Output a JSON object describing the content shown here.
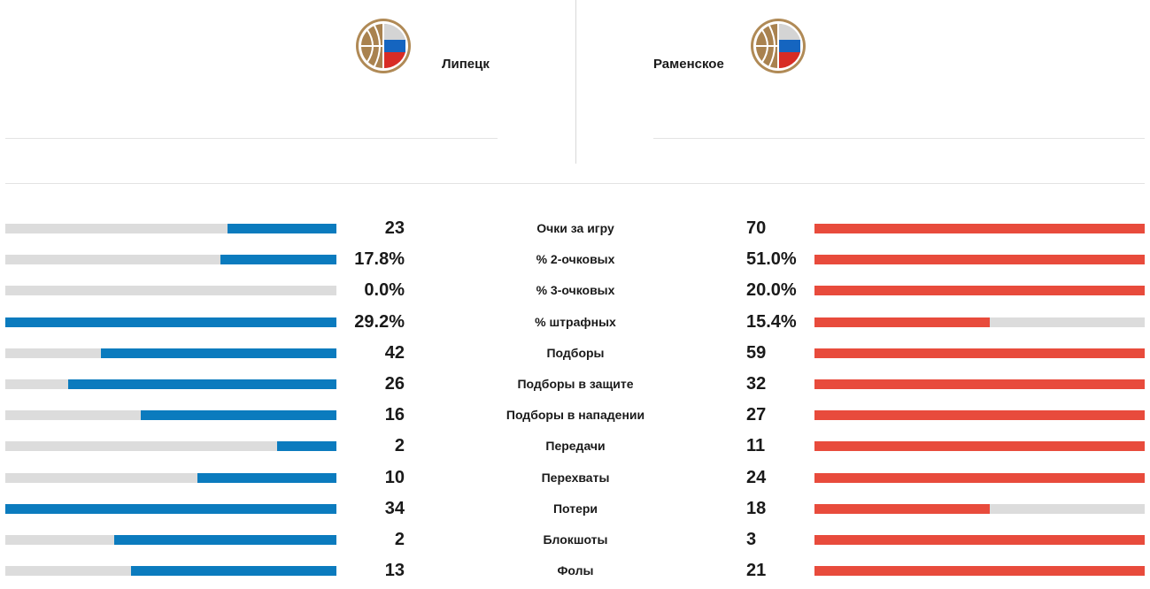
{
  "teams": {
    "home": {
      "name": "Липецк",
      "logo_icon": "basketball-federation-logo"
    },
    "away": {
      "name": "Раменское",
      "logo_icon": "basketball-federation-logo"
    }
  },
  "colors": {
    "home": "#0b7bbe",
    "away": "#e84b3c",
    "track": "#dcdcdc"
  },
  "stats": [
    {
      "label": "Очки за игру",
      "home": "23",
      "away": "70",
      "home_fill": 0.33,
      "away_fill": 1.0
    },
    {
      "label": "% 2-очковых",
      "home": "17.8%",
      "away": "51.0%",
      "home_fill": 0.35,
      "away_fill": 1.0
    },
    {
      "label": "% 3-очковых",
      "home": "0.0%",
      "away": "20.0%",
      "home_fill": 0.0,
      "away_fill": 1.0
    },
    {
      "label": "% штрафных",
      "home": "29.2%",
      "away": "15.4%",
      "home_fill": 1.0,
      "away_fill": 0.53
    },
    {
      "label": "Подборы",
      "home": "42",
      "away": "59",
      "home_fill": 0.71,
      "away_fill": 1.0
    },
    {
      "label": "Подборы в защите",
      "home": "26",
      "away": "32",
      "home_fill": 0.81,
      "away_fill": 1.0
    },
    {
      "label": "Подборы в нападении",
      "home": "16",
      "away": "27",
      "home_fill": 0.59,
      "away_fill": 1.0
    },
    {
      "label": "Передачи",
      "home": "2",
      "away": "11",
      "home_fill": 0.18,
      "away_fill": 1.0
    },
    {
      "label": "Перехваты",
      "home": "10",
      "away": "24",
      "home_fill": 0.42,
      "away_fill": 1.0
    },
    {
      "label": "Потери",
      "home": "34",
      "away": "18",
      "home_fill": 1.0,
      "away_fill": 0.53
    },
    {
      "label": "Блокшоты",
      "home": "2",
      "away": "3",
      "home_fill": 0.67,
      "away_fill": 1.0
    },
    {
      "label": "Фолы",
      "home": "13",
      "away": "21",
      "home_fill": 0.62,
      "away_fill": 1.0
    }
  ]
}
